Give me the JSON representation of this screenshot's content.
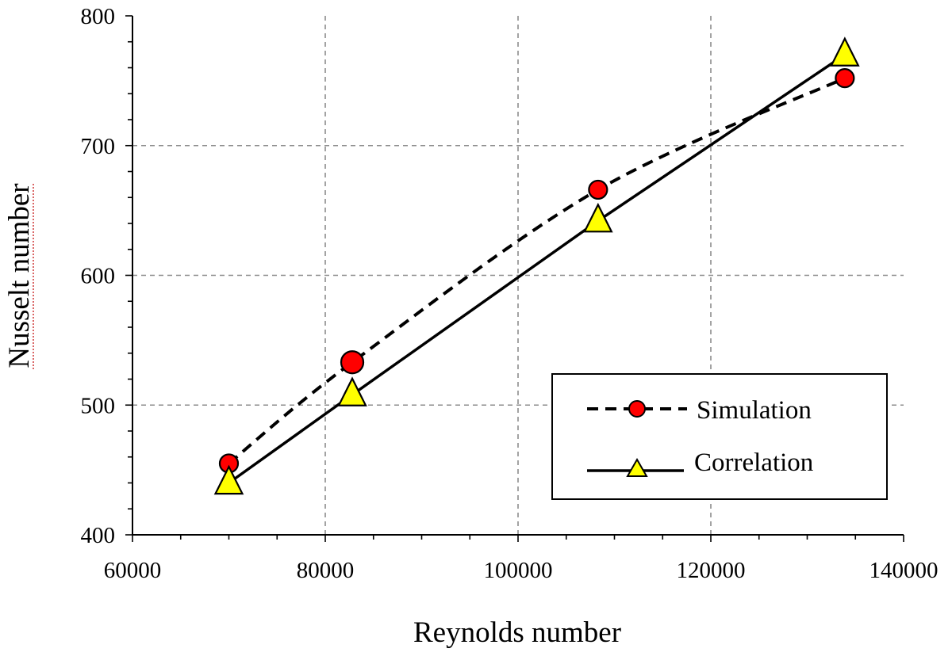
{
  "chart_data": {
    "type": "line",
    "xlabel": "Reynolds number",
    "ylabel": "Nusselt number",
    "xlim": [
      60000,
      140000
    ],
    "ylim": [
      400,
      800
    ],
    "x_ticks": [
      "60000",
      "80000",
      "100000",
      "120000",
      "140000"
    ],
    "y_ticks": [
      "400",
      "500",
      "600",
      "700",
      "800"
    ],
    "grid": true,
    "legend_position": "bottom-right",
    "series": [
      {
        "name": "Simulation",
        "line_style": "dashed-smooth",
        "marker": "circle",
        "marker_color": "#ff0000",
        "x": [
          70000,
          82800,
          108300,
          133900
        ],
        "y": [
          455,
          533,
          666,
          752
        ]
      },
      {
        "name": "Correlation",
        "line_style": "solid",
        "marker": "triangle",
        "marker_color": "#ffff00",
        "x": [
          70000,
          82800,
          108300,
          133900
        ],
        "y": [
          440,
          508,
          642,
          770
        ]
      }
    ]
  }
}
